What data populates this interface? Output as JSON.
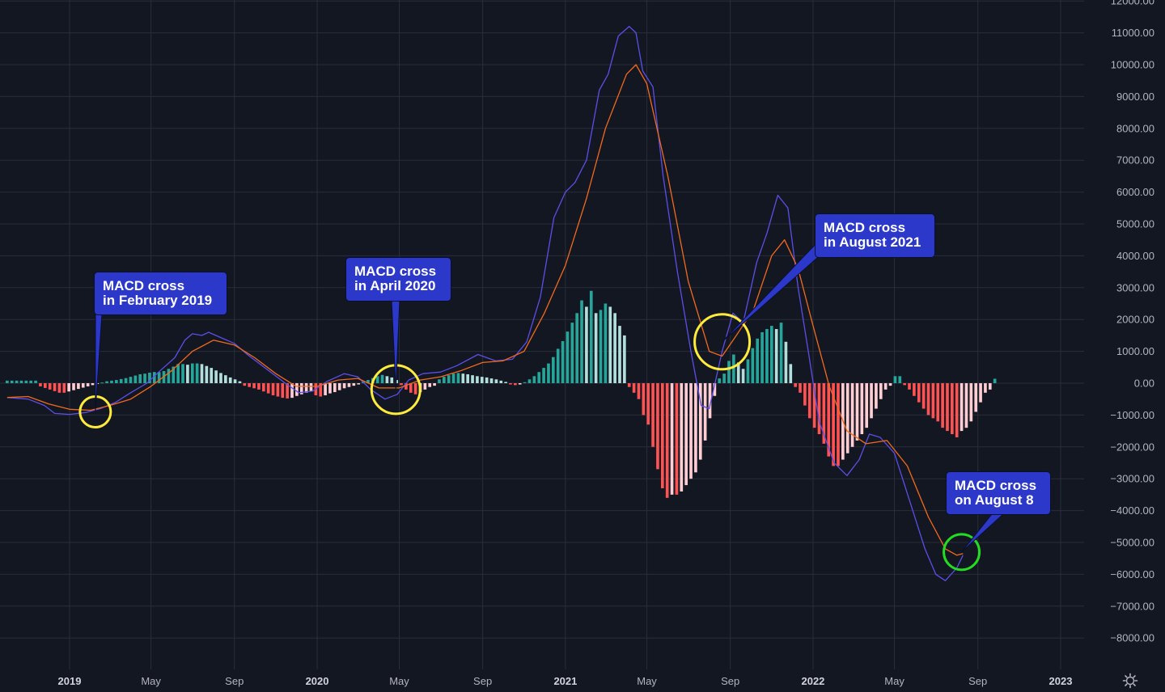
{
  "chart_data": {
    "type": "bar",
    "title": "",
    "xlabel": "",
    "ylabel": "",
    "ylim": [
      -8800,
      12000
    ],
    "grid": true,
    "y_ticks": [
      12000,
      11000,
      10000,
      9000,
      8000,
      7000,
      6000,
      5000,
      4000,
      3000,
      2000,
      1000,
      0,
      -1000,
      -2000,
      -3000,
      -4000,
      -5000,
      -6000,
      -7000,
      -8000
    ],
    "y_tick_labels": [
      "12000.00",
      "11000.00",
      "10000.00",
      "9000.00",
      "8000.00",
      "7000.00",
      "6000.00",
      "5000.00",
      "4000.00",
      "3000.00",
      "2000.00",
      "1000.00",
      "0.00",
      "−1000.00",
      "−2000.00",
      "−3000.00",
      "−4000.00",
      "−5000.00",
      "−6000.00",
      "−7000.00",
      "−8000.00"
    ],
    "x_ticks": [
      {
        "label": "2019",
        "date": "2019-01-01",
        "year": true
      },
      {
        "label": "May",
        "date": "2019-05-01",
        "year": false
      },
      {
        "label": "Sep",
        "date": "2019-09-01",
        "year": false
      },
      {
        "label": "2020",
        "date": "2020-01-01",
        "year": true
      },
      {
        "label": "May",
        "date": "2020-05-01",
        "year": false
      },
      {
        "label": "Sep",
        "date": "2020-09-01",
        "year": false
      },
      {
        "label": "2021",
        "date": "2021-01-01",
        "year": true
      },
      {
        "label": "May",
        "date": "2021-05-01",
        "year": false
      },
      {
        "label": "Sep",
        "date": "2021-09-01",
        "year": false
      },
      {
        "label": "2022",
        "date": "2022-01-01",
        "year": true
      },
      {
        "label": "May",
        "date": "2022-05-01",
        "year": false
      },
      {
        "label": "Sep",
        "date": "2022-09-01",
        "year": false
      },
      {
        "label": "2023",
        "date": "2023-01-01",
        "year": true
      }
    ],
    "colors": {
      "macd": "#5b4fe8",
      "signal": "#f26a1b",
      "hist_pos_up": "#26a69a",
      "hist_pos_down": "#b2dfdb",
      "hist_neg_down": "#ff5252",
      "hist_neg_up": "#ffcdd2",
      "grid": "#2a2e39",
      "circle_yellow": "#ffeb3b",
      "circle_green": "#22dd22"
    },
    "series": [
      {
        "key": "macd",
        "points": [
          [
            "2018-10-01",
            -450
          ],
          [
            "2018-11-01",
            -500
          ],
          [
            "2018-11-25",
            -700
          ],
          [
            "2018-12-10",
            -950
          ],
          [
            "2019-01-01",
            -980
          ],
          [
            "2019-01-25",
            -920
          ],
          [
            "2019-02-15",
            -800
          ],
          [
            "2019-03-10",
            -600
          ],
          [
            "2019-04-01",
            -300
          ],
          [
            "2019-04-25",
            0
          ],
          [
            "2019-05-15",
            400
          ],
          [
            "2019-06-05",
            800
          ],
          [
            "2019-06-20",
            1350
          ],
          [
            "2019-07-01",
            1550
          ],
          [
            "2019-07-15",
            1500
          ],
          [
            "2019-07-25",
            1600
          ],
          [
            "2019-08-10",
            1450
          ],
          [
            "2019-09-01",
            1250
          ],
          [
            "2019-09-20",
            900
          ],
          [
            "2019-10-15",
            500
          ],
          [
            "2019-11-15",
            0
          ],
          [
            "2019-12-05",
            -300
          ],
          [
            "2019-12-25",
            -250
          ],
          [
            "2020-01-15",
            50
          ],
          [
            "2020-02-10",
            300
          ],
          [
            "2020-03-01",
            200
          ],
          [
            "2020-03-20",
            -200
          ],
          [
            "2020-04-10",
            -500
          ],
          [
            "2020-04-28",
            -350
          ],
          [
            "2020-05-15",
            100
          ],
          [
            "2020-06-05",
            300
          ],
          [
            "2020-07-01",
            350
          ],
          [
            "2020-07-25",
            550
          ],
          [
            "2020-08-25",
            900
          ],
          [
            "2020-09-20",
            700
          ],
          [
            "2020-10-15",
            750
          ],
          [
            "2020-11-05",
            1300
          ],
          [
            "2020-11-25",
            2700
          ],
          [
            "2020-12-15",
            5200
          ],
          [
            "2021-01-01",
            6000
          ],
          [
            "2021-01-15",
            6300
          ],
          [
            "2021-02-01",
            7000
          ],
          [
            "2021-02-20",
            9200
          ],
          [
            "2021-03-05",
            9700
          ],
          [
            "2021-03-20",
            10900
          ],
          [
            "2021-04-05",
            11200
          ],
          [
            "2021-04-15",
            11000
          ],
          [
            "2021-04-25",
            9800
          ],
          [
            "2021-05-10",
            9300
          ],
          [
            "2021-05-25",
            6500
          ],
          [
            "2021-06-15",
            3500
          ],
          [
            "2021-07-05",
            1000
          ],
          [
            "2021-07-20",
            -700
          ],
          [
            "2021-08-01",
            -800
          ],
          [
            "2021-08-20",
            1000
          ],
          [
            "2021-09-05",
            2200
          ],
          [
            "2021-09-20",
            1900
          ],
          [
            "2021-10-10",
            3800
          ],
          [
            "2021-10-25",
            4700
          ],
          [
            "2021-11-10",
            5900
          ],
          [
            "2021-11-25",
            5500
          ],
          [
            "2021-12-10",
            3000
          ],
          [
            "2021-12-25",
            1000
          ],
          [
            "2022-01-10",
            -1200
          ],
          [
            "2022-02-01",
            -2500
          ],
          [
            "2022-02-20",
            -2900
          ],
          [
            "2022-03-10",
            -2400
          ],
          [
            "2022-03-25",
            -1600
          ],
          [
            "2022-04-10",
            -1700
          ],
          [
            "2022-05-01",
            -2200
          ],
          [
            "2022-05-25",
            -3800
          ],
          [
            "2022-06-15",
            -5200
          ],
          [
            "2022-07-01",
            -6000
          ],
          [
            "2022-07-15",
            -6200
          ],
          [
            "2022-08-01",
            -5800
          ],
          [
            "2022-08-10",
            -5400
          ]
        ]
      },
      {
        "key": "signal",
        "points": [
          [
            "2018-10-01",
            -450
          ],
          [
            "2018-11-01",
            -420
          ],
          [
            "2018-12-01",
            -650
          ],
          [
            "2019-01-01",
            -820
          ],
          [
            "2019-02-01",
            -850
          ],
          [
            "2019-03-01",
            -700
          ],
          [
            "2019-04-01",
            -500
          ],
          [
            "2019-05-01",
            -100
          ],
          [
            "2019-06-01",
            400
          ],
          [
            "2019-07-01",
            1000
          ],
          [
            "2019-08-01",
            1350
          ],
          [
            "2019-09-01",
            1200
          ],
          [
            "2019-10-01",
            800
          ],
          [
            "2019-11-01",
            300
          ],
          [
            "2019-12-01",
            -100
          ],
          [
            "2020-01-01",
            -100
          ],
          [
            "2020-02-01",
            100
          ],
          [
            "2020-03-01",
            150
          ],
          [
            "2020-04-01",
            -150
          ],
          [
            "2020-05-01",
            -150
          ],
          [
            "2020-06-01",
            100
          ],
          [
            "2020-07-01",
            200
          ],
          [
            "2020-08-01",
            400
          ],
          [
            "2020-09-01",
            650
          ],
          [
            "2020-10-01",
            700
          ],
          [
            "2020-11-01",
            1000
          ],
          [
            "2020-12-01",
            2200
          ],
          [
            "2021-01-01",
            3700
          ],
          [
            "2021-02-01",
            5800
          ],
          [
            "2021-03-01",
            8000
          ],
          [
            "2021-04-01",
            9700
          ],
          [
            "2021-04-15",
            10000
          ],
          [
            "2021-05-01",
            9400
          ],
          [
            "2021-06-01",
            6500
          ],
          [
            "2021-07-01",
            3200
          ],
          [
            "2021-08-01",
            1000
          ],
          [
            "2021-08-20",
            850
          ],
          [
            "2021-09-10",
            1500
          ],
          [
            "2021-10-05",
            2300
          ],
          [
            "2021-11-01",
            4000
          ],
          [
            "2021-11-20",
            4500
          ],
          [
            "2021-12-10",
            3600
          ],
          [
            "2022-01-01",
            1800
          ],
          [
            "2022-01-25",
            -100
          ],
          [
            "2022-02-20",
            -1500
          ],
          [
            "2022-03-20",
            -1900
          ],
          [
            "2022-04-20",
            -1800
          ],
          [
            "2022-05-20",
            -2600
          ],
          [
            "2022-06-20",
            -4200
          ],
          [
            "2022-07-15",
            -5200
          ],
          [
            "2022-08-01",
            -5400
          ],
          [
            "2022-08-10",
            -5350
          ]
        ]
      }
    ],
    "histogram": {
      "start": "2018-10-01",
      "step_days": 7,
      "values": [
        80,
        80,
        80,
        80,
        80,
        80,
        80,
        -100,
        -150,
        -200,
        -250,
        -300,
        -300,
        -260,
        -220,
        -180,
        -140,
        -100,
        -60,
        -20,
        20,
        60,
        80,
        100,
        130,
        160,
        200,
        240,
        280,
        300,
        330,
        350,
        350,
        380,
        450,
        520,
        600,
        600,
        580,
        620,
        620,
        600,
        540,
        480,
        400,
        320,
        250,
        180,
        120,
        60,
        -80,
        -120,
        -160,
        -200,
        -260,
        -320,
        -380,
        -420,
        -460,
        -480,
        -460,
        -400,
        -350,
        -300,
        -260,
        -380,
        -420,
        -380,
        -320,
        -280,
        -220,
        -160,
        -120,
        -80,
        -40,
        60,
        100,
        160,
        220,
        260,
        220,
        180,
        100,
        -60,
        -200,
        -300,
        -350,
        -280,
        -200,
        -120,
        -80,
        120,
        200,
        250,
        300,
        320,
        300,
        280,
        250,
        220,
        200,
        180,
        150,
        120,
        80,
        40,
        -40,
        -60,
        -40,
        30,
        120,
        220,
        350,
        480,
        620,
        820,
        1080,
        1320,
        1620,
        1900,
        2200,
        2600,
        2400,
        2900,
        2200,
        2300,
        2500,
        2400,
        2200,
        1800,
        1500,
        -120,
        -300,
        -500,
        -1000,
        -1300,
        -2000,
        -2700,
        -3300,
        -3600,
        -3500,
        -3500,
        -3400,
        -3200,
        -3000,
        -2800,
        -2400,
        -1800,
        -1100,
        -400,
        150,
        300,
        700,
        900,
        650,
        450,
        750,
        1100,
        1400,
        1600,
        1700,
        1800,
        1700,
        1900,
        1300,
        600,
        -120,
        -300,
        -700,
        -1100,
        -1400,
        -1600,
        -1900,
        -2300,
        -2600,
        -2600,
        -2400,
        -2200,
        -2000,
        -1800,
        -1600,
        -1400,
        -1100,
        -800,
        -500,
        -200,
        -80,
        220,
        220,
        -60,
        -200,
        -400,
        -600,
        -800,
        -1000,
        -1100,
        -1200,
        -1400,
        -1500,
        -1600,
        -1700,
        -1500,
        -1400,
        -1200,
        -900,
        -600,
        -300,
        -200,
        140
      ]
    },
    "annotations": [
      {
        "lines": [
          "MACD cross",
          "in February 2019"
        ],
        "date": "2019-02-08",
        "value": -900,
        "circle": "yellow"
      },
      {
        "lines": [
          "MACD cross",
          "in April 2020"
        ],
        "date": "2020-04-26",
        "value": -200,
        "circle": "yellow"
      },
      {
        "lines": [
          "MACD cross",
          "in August 2021"
        ],
        "date": "2021-08-20",
        "value": 1300,
        "circle": "yellow"
      },
      {
        "lines": [
          "MACD cross",
          "on August 8"
        ],
        "date": "2022-08-08",
        "value": -5300,
        "circle": "green"
      }
    ]
  }
}
